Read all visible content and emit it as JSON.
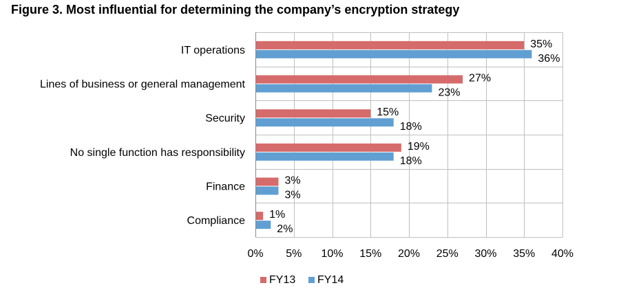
{
  "chart_data": {
    "type": "bar",
    "orientation": "horizontal",
    "title": "Figure 3.  Most influential for determining the company’s encryption strategy",
    "categories": [
      "IT operations",
      "Lines of business or general management",
      "Security",
      "No single function has responsibility",
      "Finance",
      "Compliance"
    ],
    "series": [
      {
        "name": "FY13",
        "color": "#d56b6b",
        "values": [
          35,
          27,
          15,
          19,
          3,
          1
        ]
      },
      {
        "name": "FY14",
        "color": "#619fd2",
        "values": [
          36,
          23,
          18,
          18,
          3,
          2
        ]
      }
    ],
    "xlim": [
      0,
      40
    ],
    "xticks": [
      0,
      5,
      10,
      15,
      20,
      25,
      30,
      35,
      40
    ],
    "tick_suffix": "%",
    "grid": "vertical",
    "legend_position": "bottom"
  }
}
